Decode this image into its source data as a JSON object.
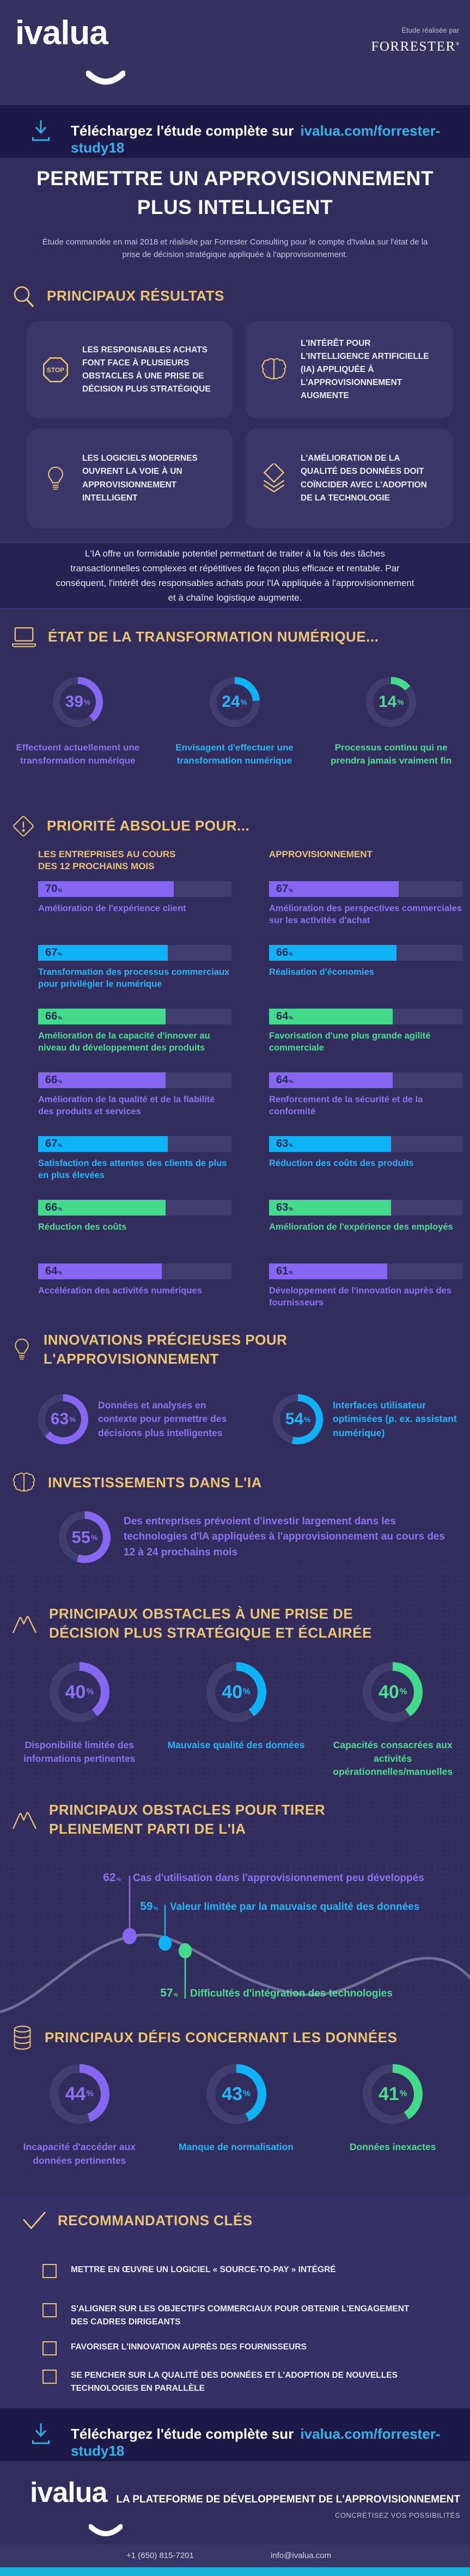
{
  "colors": {
    "accent_purple": "#8667f2",
    "accent_cyan": "#0db2f7",
    "accent_green": "#44da8c",
    "text_purple": "#8d72f0",
    "text_cyan": "#23b7f8",
    "text_green": "#4cdc92",
    "gold": "#eac573",
    "link_cyan": "#2fb3e8"
  },
  "header": {
    "logo_text": "ivalua",
    "study_by": "Étude réalisée par",
    "publisher": "FORRESTER",
    "publisher_mark": "®"
  },
  "download_banner": {
    "label": "Téléchargez l'étude complète sur",
    "link": "ivalua.com/forrester-study18"
  },
  "hero": {
    "title": "PERMETTRE UN APPROVISIONNEMENT\nPLUS INTELLIGENT",
    "intro": "Étude commandée en mai 2018 et réalisée par Forrester Consulting pour le compte d'Ivalua sur l'état de la prise de décision stratégique appliquée à l'approvisionnement."
  },
  "results": {
    "heading": "PRINCIPAUX RÉSULTATS",
    "cards": [
      {
        "icon": "stop-icon",
        "text": "LES RESPONSABLES ACHATS FONT FACE À PLUSIEURS OBSTACLES À UNE PRISE DE DÉCISION PLUS STRATÉGIQUE"
      },
      {
        "icon": "brain-icon",
        "text": "L'INTÉRÊT POUR L'INTELLIGENCE ARTIFICIELLE (IA) APPLIQUÉE À L'APPROVISIONNEMENT AUGMENTE"
      },
      {
        "icon": "bulb-icon",
        "text": "LES LOGICIELS MODERNES OUVRENT LA VOIE À UN APPROVISIONNEMENT INTELLIGENT"
      },
      {
        "icon": "layers-icon",
        "text": "L'AMÉLIORATION DE LA QUALITÉ DES DONNÉES DOIT COÏNCIDER AVEC L'ADOPTION DE LA TECHNOLOGIE"
      }
    ]
  },
  "quote": "L'IA offre un formidable potentiel permettant de traiter à la fois des tâches transactionnelles complexes et répétitives de façon plus efficace et rentable. Par conséquent, l'intérêt des responsables achats pour l'IA appliquée à l'approvisionnement et à chaîne logistique augmente.",
  "transformation": {
    "heading": "ÉTAT DE LA TRANSFORMATION NUMÉRIQUE...",
    "stats": [
      {
        "value": 39,
        "color": "purple",
        "label": "Effectuent actuellement une transformation numérique"
      },
      {
        "value": 24,
        "color": "cyan",
        "label": "Envisagent d'effectuer une transformation numérique"
      },
      {
        "value": 14,
        "color": "green",
        "label": "Processus continu qui ne prendra jamais vraiment fin"
      }
    ]
  },
  "priorities": {
    "heading": "PRIORITÉ ABSOLUE POUR...",
    "columns": [
      {
        "header": "LES ENTREPRISES AU COURS\nDES 12 PROCHAINS MOIS",
        "items": [
          {
            "value": 70,
            "color": "purple",
            "label": "Amélioration de l'expérience client"
          },
          {
            "value": 67,
            "color": "cyan",
            "label": "Transformation des processus commerciaux pour privilégier le numérique"
          },
          {
            "value": 66,
            "color": "green",
            "label": "Amélioration de la capacité d'innover au niveau du développement des produits"
          },
          {
            "value": 66,
            "color": "purple",
            "label": "Amélioration de la qualité et de la fiabilité des produits et services"
          },
          {
            "value": 67,
            "color": "cyan",
            "label": "Satisfaction des attentes des clients de plus en plus élevées"
          },
          {
            "value": 66,
            "color": "green",
            "label": "Réduction des coûts"
          },
          {
            "value": 64,
            "color": "purple",
            "label": "Accélération des activités numériques"
          }
        ]
      },
      {
        "header": "APPROVISIONNEMENT",
        "items": [
          {
            "value": 67,
            "color": "purple",
            "label": "Amélioration des perspectives commerciales sur les activités d'achat"
          },
          {
            "value": 66,
            "color": "cyan",
            "label": "Réalisation d'économies"
          },
          {
            "value": 64,
            "color": "green",
            "label": "Favorisation d'une plus grande agilité commerciale"
          },
          {
            "value": 64,
            "color": "purple",
            "label": "Renforcement de la sécurité et de la conformité"
          },
          {
            "value": 63,
            "color": "cyan",
            "label": "Réduction des coûts des produits"
          },
          {
            "value": 63,
            "color": "green",
            "label": "Amélioration de l'expérience des employés"
          },
          {
            "value": 61,
            "color": "purple",
            "label": "Développement de l'innovation auprès des fournisseurs"
          }
        ]
      }
    ]
  },
  "innovations": {
    "heading": "INNOVATIONS PRÉCIEUSES POUR\nL'APPROVISIONNEMENT",
    "items": [
      {
        "value": 63,
        "color": "purple",
        "label": "Données et analyses en contexte pour permettre des décisions plus intelligentes"
      },
      {
        "value": 54,
        "color": "cyan",
        "label": "Interfaces utilisateur optimisées (p. ex. assistant numérique)"
      }
    ]
  },
  "investments": {
    "heading": "INVESTISSEMENTS DANS L'IA",
    "value": 55,
    "color": "purple",
    "label": "Des entreprises prévoient d'investir largement dans les technologies d'IA appliquées à l'approvisionnement au cours des 12 à 24 prochains mois"
  },
  "obstacles_decision": {
    "heading": "PRINCIPAUX OBSTACLES À UNE PRISE DE\nDÉCISION PLUS STRATÉGIQUE ET ÉCLAIRÉE",
    "stats": [
      {
        "value": 40,
        "color": "purple",
        "label": "Disponibilité limitée des informations pertinentes"
      },
      {
        "value": 40,
        "color": "cyan",
        "label": "Mauvaise qualité des données"
      },
      {
        "value": 40,
        "color": "green",
        "label": "Capacités consacrées aux activités opérationnelles/manuelles"
      }
    ]
  },
  "obstacles_ia": {
    "heading": "PRINCIPAUX OBSTACLES POUR TIRER\nPLEINEMENT PARTI DE L'IA",
    "points": [
      {
        "value": 62,
        "color": "purple",
        "label": "Cas d'utilisation dans l'approvisionnement peu développés"
      },
      {
        "value": 59,
        "color": "cyan",
        "label": "Valeur limitée par la mauvaise qualité des données"
      },
      {
        "value": 57,
        "color": "green",
        "label": "Difficultés d'intégration des technologies"
      }
    ]
  },
  "data_challenges": {
    "heading": "PRINCIPAUX DÉFIS CONCERNANT LES DONNÉES",
    "stats": [
      {
        "value": 44,
        "color": "purple",
        "label": "Incapacité d'accéder aux données pertinentes"
      },
      {
        "value": 43,
        "color": "cyan",
        "label": "Manque de normalisation"
      },
      {
        "value": 41,
        "color": "green",
        "label": "Données inexactes"
      }
    ]
  },
  "recommendations": {
    "heading": "RECOMMANDATIONS CLÉS",
    "items": [
      "METTRE EN ŒUVRE UN LOGICIEL « SOURCE-TO-PAY » INTÉGRÉ",
      "S'ALIGNER SUR LES OBJECTIFS COMMERCIAUX POUR OBTENIR L'ENGAGEMENT DES CADRES DIRIGEANTS",
      "FAVORISER L'INNOVATION AUPRÈS DES FOURNISSEURS",
      "SE PENCHER SUR LA QUALITÉ DES DONNÉES ET L'ADOPTION DE NOUVELLES TECHNOLOGIES EN PARALLÈLE"
    ]
  },
  "footer": {
    "tagline": "LA PLATEFORME DE DÉVELOPPEMENT DE L'APPROVISIONNEMENT",
    "subtagline": "CONCRÉTISEZ VOS POSSIBILITÉS",
    "phone": "+1 (650) 815-7201",
    "email": "info@ivalua.com"
  },
  "chart_data": [
    {
      "type": "pie",
      "subtype": "donut-set",
      "unit": "%",
      "title": "ÉTAT DE LA TRANSFORMATION NUMÉRIQUE...",
      "values": [
        39,
        24,
        14
      ],
      "labels": [
        "Effectuent actuellement une transformation numérique",
        "Envisagent d'effectuer une transformation numérique",
        "Processus continu qui ne prendra jamais vraiment fin"
      ]
    },
    {
      "type": "bar",
      "unit": "%",
      "xlim": [
        0,
        100
      ],
      "title": "PRIORITÉ ABSOLUE POUR... — LES ENTREPRISES AU COURS DES 12 PROCHAINS MOIS",
      "categories": [
        "Amélioration de l'expérience client",
        "Transformation des processus commerciaux pour privilégier le numérique",
        "Amélioration de la capacité d'innover au niveau du développement des produits",
        "Amélioration de la qualité et de la fiabilité des produits et services",
        "Satisfaction des attentes des clients de plus en plus élevées",
        "Réduction des coûts",
        "Accélération des activités numériques"
      ],
      "values": [
        70,
        67,
        66,
        66,
        67,
        66,
        64
      ]
    },
    {
      "type": "bar",
      "unit": "%",
      "xlim": [
        0,
        100
      ],
      "title": "PRIORITÉ ABSOLUE POUR... — APPROVISIONNEMENT",
      "categories": [
        "Amélioration des perspectives commerciales sur les activités d'achat",
        "Réalisation d'économies",
        "Favorisation d'une plus grande agilité commerciale",
        "Renforcement de la sécurité et de la conformité",
        "Réduction des coûts des produits",
        "Amélioration de l'expérience des employés",
        "Développement de l'innovation auprès des fournisseurs"
      ],
      "values": [
        67,
        66,
        64,
        64,
        63,
        63,
        61
      ]
    },
    {
      "type": "pie",
      "subtype": "donut-set",
      "unit": "%",
      "title": "INNOVATIONS PRÉCIEUSES POUR L'APPROVISIONNEMENT",
      "values": [
        63,
        54
      ],
      "labels": [
        "Données et analyses en contexte pour permettre des décisions plus intelligentes",
        "Interfaces utilisateur optimisées (p. ex. assistant numérique)"
      ]
    },
    {
      "type": "pie",
      "subtype": "donut",
      "unit": "%",
      "title": "INVESTISSEMENTS DANS L'IA",
      "values": [
        55
      ],
      "labels": [
        "Des entreprises prévoient d'investir largement dans les technologies d'IA appliquées à l'approvisionnement au cours des 12 à 24 prochains mois"
      ]
    },
    {
      "type": "pie",
      "subtype": "donut-set",
      "unit": "%",
      "title": "PRINCIPAUX OBSTACLES À UNE PRISE DE DÉCISION PLUS STRATÉGIQUE ET ÉCLAIRÉE",
      "values": [
        40,
        40,
        40
      ],
      "labels": [
        "Disponibilité limitée des informations pertinentes",
        "Mauvaise qualité des données",
        "Capacités consacrées aux activités opérationnelles/manuelles"
      ]
    },
    {
      "type": "line",
      "subtype": "annotated-curve",
      "unit": "%",
      "title": "PRINCIPAUX OBSTACLES POUR TIRER PLEINEMENT PARTI DE L'IA",
      "values": [
        62,
        59,
        57
      ],
      "labels": [
        "Cas d'utilisation dans l'approvisionnement peu développés",
        "Valeur limitée par la mauvaise qualité des données",
        "Difficultés d'intégration des technologies"
      ]
    },
    {
      "type": "pie",
      "subtype": "donut-set",
      "unit": "%",
      "title": "PRINCIPAUX DÉFIS CONCERNANT LES DONNÉES",
      "values": [
        44,
        43,
        41
      ],
      "labels": [
        "Incapacité d'accéder aux données pertinentes",
        "Manque de normalisation",
        "Données inexactes"
      ]
    }
  ]
}
